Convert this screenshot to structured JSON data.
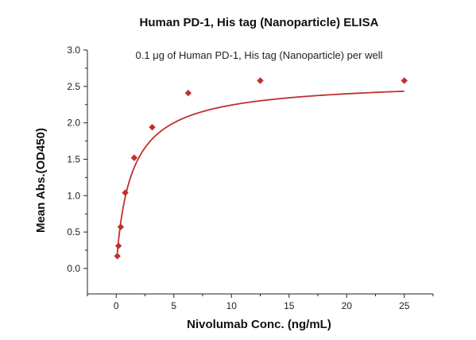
{
  "chart_data": {
    "type": "scatter",
    "title": "Human PD-1, His tag (Nanoparticle) ELISA",
    "subtitle": "0.1 μg of Human PD-1, His tag (Nanoparticle) per well",
    "xlabel": "Nivolumab Conc. (ng/mL)",
    "ylabel": "Mean Abs.(OD450)",
    "xlim": [
      -2.5,
      27.5
    ],
    "ylim": [
      -0.35,
      3.0
    ],
    "x_ticks": [
      0,
      5,
      10,
      15,
      20,
      25
    ],
    "y_ticks": [
      0.0,
      0.5,
      1.0,
      1.5,
      2.0,
      2.5,
      3.0
    ],
    "x_tick_labels": [
      "0",
      "5",
      "10",
      "15",
      "20",
      "25"
    ],
    "y_tick_labels": [
      "0.0",
      "0.5",
      "1.0",
      "1.5",
      "2.0",
      "2.5",
      "3.0"
    ],
    "grid": false,
    "legend": "none",
    "series": [
      {
        "x": [
          0.098,
          0.195,
          0.39,
          0.78,
          1.56,
          3.125,
          6.25,
          12.5,
          25
        ],
        "y": [
          0.17,
          0.31,
          0.57,
          1.04,
          1.52,
          1.94,
          2.41,
          2.58,
          2.58
        ],
        "color": "#c0302f",
        "marker": "diamond",
        "fit": "saturation curve"
      }
    ]
  }
}
